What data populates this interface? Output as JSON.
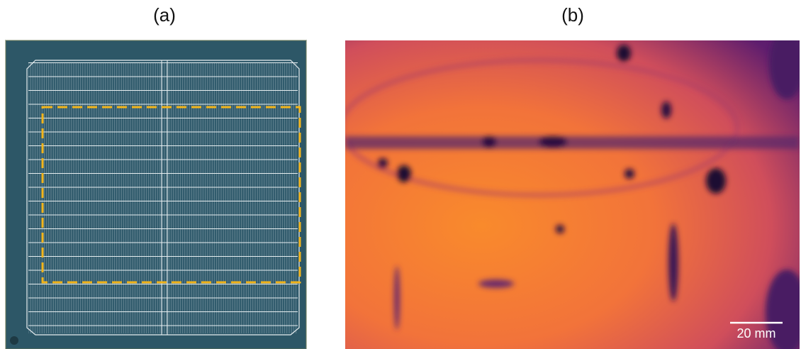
{
  "panels": [
    {
      "label": "(a)"
    },
    {
      "label": "(b)",
      "scale_bar": "20 mm"
    }
  ]
}
